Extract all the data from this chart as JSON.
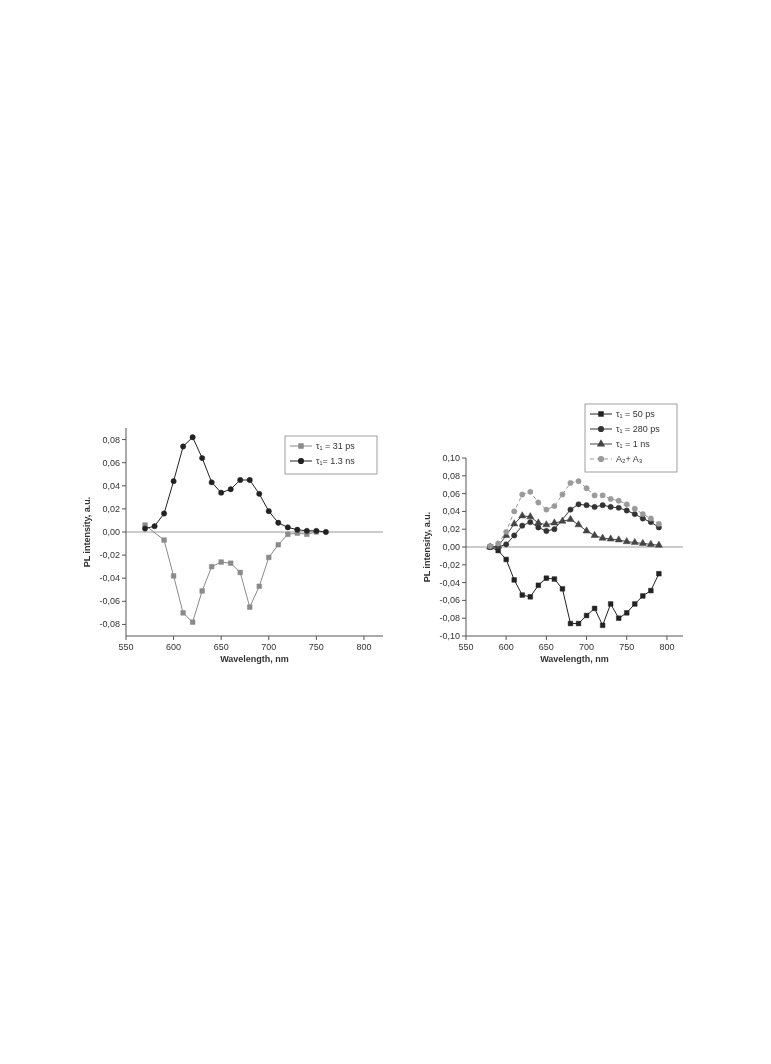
{
  "chart_data": [
    {
      "type": "line",
      "xlabel": "Wavelength, nm",
      "ylabel": "PL intensity, a.u.",
      "xlim": [
        550,
        820
      ],
      "xticks": [
        550,
        600,
        650,
        700,
        750,
        800
      ],
      "ylim": [
        -0.09,
        0.09
      ],
      "yticks": [
        {
          "value": -0.08,
          "label": "-0,08"
        },
        {
          "value": -0.06,
          "label": "-0,06"
        },
        {
          "value": -0.04,
          "label": "-0,04"
        },
        {
          "value": -0.02,
          "label": "-0,02"
        },
        {
          "value": 0,
          "label": "0,00"
        },
        {
          "value": 0.02,
          "label": "0,02"
        },
        {
          "value": 0.04,
          "label": "0,04"
        },
        {
          "value": 0.06,
          "label": "0,06"
        },
        {
          "value": 0.08,
          "label": "0,08"
        }
      ],
      "legend": "top right",
      "grid": false,
      "ref_lines": [
        {
          "axis": "y",
          "value": 0,
          "color": "#999999"
        }
      ],
      "series": [
        {
          "name": "τ₁ = 31 ps",
          "color": "#8a8a8a",
          "marker": "square",
          "x": [
            570,
            580,
            590,
            600,
            610,
            620,
            630,
            640,
            650,
            660,
            670,
            680,
            690,
            700,
            710,
            720,
            730,
            740,
            750
          ],
          "values": [
            0.006,
            null,
            -0.007,
            -0.038,
            -0.07,
            -0.078,
            -0.051,
            -0.03,
            -0.026,
            -0.027,
            -0.035,
            -0.065,
            -0.047,
            -0.022,
            -0.011,
            -0.002,
            -0.001,
            -0.002,
            0.0
          ]
        },
        {
          "name": "τ₁= 1.3 ns",
          "color": "#222222",
          "marker": "circle",
          "x": [
            570,
            580,
            590,
            600,
            610,
            620,
            630,
            640,
            650,
            660,
            670,
            680,
            690,
            700,
            710,
            720,
            730,
            740,
            750,
            760
          ],
          "values": [
            0.003,
            0.005,
            0.016,
            0.044,
            0.074,
            0.082,
            0.064,
            0.043,
            0.034,
            0.037,
            0.045,
            0.045,
            0.033,
            0.018,
            0.008,
            0.004,
            0.002,
            0.001,
            0.001,
            0.0
          ]
        }
      ]
    },
    {
      "type": "line",
      "xlabel": "Wavelength, nm",
      "ylabel": "PL intensity, a.u.",
      "xlim": [
        550,
        820
      ],
      "xticks": [
        550,
        600,
        650,
        700,
        750,
        800
      ],
      "ylim": [
        -0.1,
        0.1
      ],
      "yticks": [
        {
          "value": -0.1,
          "label": "-0,10"
        },
        {
          "value": -0.08,
          "label": "-0,08"
        },
        {
          "value": -0.06,
          "label": "-0,06"
        },
        {
          "value": -0.04,
          "label": "-0,04"
        },
        {
          "value": -0.02,
          "label": "-0,02"
        },
        {
          "value": 0,
          "label": "0,00"
        },
        {
          "value": 0.02,
          "label": "0,02"
        },
        {
          "value": 0.04,
          "label": "0,04"
        },
        {
          "value": 0.06,
          "label": "0,06"
        },
        {
          "value": 0.08,
          "label": "0,08"
        },
        {
          "value": 0.1,
          "label": "0,10"
        }
      ],
      "legend": "top right",
      "grid": false,
      "ref_lines": [
        {
          "axis": "y",
          "value": 0,
          "color": "#999999"
        }
      ],
      "series": [
        {
          "name": "τ₁ = 50 ps",
          "color": "#222222",
          "marker": "square",
          "x": [
            580,
            590,
            600,
            610,
            620,
            630,
            640,
            650,
            660,
            670,
            680,
            690,
            700,
            710,
            720,
            730,
            740,
            750,
            760,
            770,
            780,
            790
          ],
          "values": [
            0.0,
            -0.004,
            -0.014,
            -0.037,
            -0.054,
            -0.056,
            -0.043,
            -0.035,
            -0.036,
            -0.047,
            -0.086,
            -0.086,
            -0.077,
            -0.069,
            -0.088,
            -0.064,
            -0.08,
            -0.074,
            -0.064,
            -0.055,
            -0.049,
            -0.03
          ]
        },
        {
          "name": "τ₁ = 280 ps",
          "color": "#333333",
          "marker": "circle",
          "x": [
            580,
            590,
            600,
            610,
            620,
            630,
            640,
            650,
            660,
            670,
            680,
            690,
            700,
            710,
            720,
            730,
            740,
            750,
            760,
            770,
            780,
            790
          ],
          "values": [
            0.0,
            0.0,
            0.003,
            0.013,
            0.024,
            0.028,
            0.022,
            0.018,
            0.02,
            null,
            0.042,
            0.048,
            0.047,
            0.045,
            0.047,
            0.045,
            0.044,
            0.041,
            0.037,
            0.032,
            0.028,
            0.022
          ]
        },
        {
          "name": "τ₁ = 1 ns",
          "color": "#444444",
          "marker": "triangle",
          "x": [
            580,
            590,
            600,
            610,
            620,
            630,
            640,
            650,
            660,
            670,
            680,
            690,
            700,
            710,
            720,
            730,
            740,
            750,
            760,
            770,
            780,
            790
          ],
          "values": [
            0.0,
            0.001,
            0.013,
            0.026,
            0.035,
            0.034,
            0.027,
            0.025,
            0.027,
            0.029,
            0.031,
            0.025,
            0.018,
            0.013,
            0.01,
            0.009,
            0.008,
            0.006,
            0.005,
            0.004,
            0.003,
            0.002
          ]
        },
        {
          "name": "A₂+ A₃",
          "color": "#9a9a9a",
          "marker": "circle",
          "line_style": "dashed",
          "x": [
            580,
            590,
            600,
            610,
            620,
            630,
            640,
            650,
            660,
            670,
            680,
            690,
            700,
            710,
            720,
            730,
            740,
            750,
            760,
            770,
            780,
            790
          ],
          "values": [
            0.001,
            0.004,
            0.017,
            0.04,
            0.059,
            0.062,
            0.05,
            0.042,
            0.046,
            0.059,
            0.072,
            0.074,
            0.066,
            0.058,
            0.058,
            0.054,
            0.052,
            0.048,
            0.043,
            0.037,
            0.032,
            0.026
          ]
        }
      ]
    }
  ]
}
